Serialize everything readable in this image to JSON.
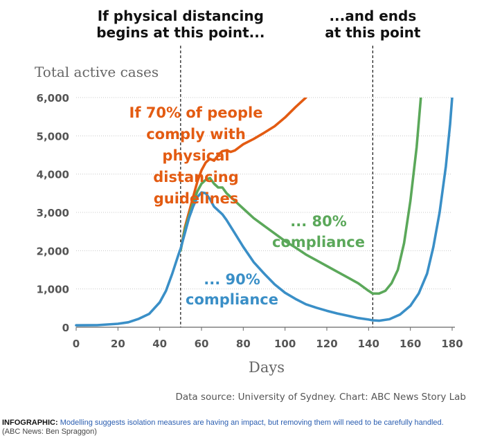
{
  "chart_data": {
    "type": "line",
    "ylabel": "Total active cases",
    "xlabel": "Days",
    "xlim": [
      0,
      180
    ],
    "ylim": [
      0,
      6000
    ],
    "x_ticks": [
      0,
      20,
      40,
      60,
      80,
      100,
      120,
      140,
      160,
      180
    ],
    "y_ticks": [
      0,
      1000,
      2000,
      3000,
      4000,
      5000,
      6000
    ],
    "x_tick_labels": [
      "0",
      "20",
      "40",
      "60",
      "80",
      "100",
      "120",
      "140",
      "160",
      "180"
    ],
    "y_tick_labels": [
      "0",
      "1,000",
      "2,000",
      "3,000",
      "4,000",
      "5,000",
      "6,000"
    ],
    "grid": "horizontal",
    "markers": [
      {
        "x": 50,
        "label_lines": [
          "If physical distancing",
          "begins at this point..."
        ]
      },
      {
        "x": 142,
        "label_lines": [
          "...and ends",
          "at this point"
        ]
      }
    ],
    "series": [
      {
        "label_lines": [
          "If 70% of people",
          "comply with",
          "physical",
          "distancing",
          "guidelines"
        ],
        "color": "#e35b12",
        "points": [
          [
            50,
            2000
          ],
          [
            52,
            2600
          ],
          [
            54,
            3000
          ],
          [
            56,
            3400
          ],
          [
            58,
            3800
          ],
          [
            60,
            4100
          ],
          [
            62,
            4300
          ],
          [
            64,
            4400
          ],
          [
            66,
            4350
          ],
          [
            68,
            4500
          ],
          [
            70,
            4600
          ],
          [
            72,
            4620
          ],
          [
            74,
            4580
          ],
          [
            76,
            4620
          ],
          [
            78,
            4700
          ],
          [
            80,
            4780
          ],
          [
            85,
            4920
          ],
          [
            90,
            5080
          ],
          [
            95,
            5250
          ],
          [
            100,
            5480
          ],
          [
            105,
            5750
          ],
          [
            110,
            6000
          ]
        ]
      },
      {
        "label_lines": [
          "... 80%",
          "compliance"
        ],
        "color": "#5ba85a",
        "points": [
          [
            50,
            2000
          ],
          [
            52,
            2550
          ],
          [
            54,
            2900
          ],
          [
            56,
            3250
          ],
          [
            58,
            3550
          ],
          [
            60,
            3750
          ],
          [
            62,
            3850
          ],
          [
            64,
            3900
          ],
          [
            66,
            3750
          ],
          [
            68,
            3650
          ],
          [
            70,
            3650
          ],
          [
            72,
            3500
          ],
          [
            76,
            3300
          ],
          [
            80,
            3100
          ],
          [
            85,
            2850
          ],
          [
            90,
            2650
          ],
          [
            95,
            2450
          ],
          [
            100,
            2250
          ],
          [
            105,
            2080
          ],
          [
            110,
            1900
          ],
          [
            115,
            1750
          ],
          [
            120,
            1600
          ],
          [
            125,
            1450
          ],
          [
            130,
            1300
          ],
          [
            135,
            1150
          ],
          [
            140,
            950
          ],
          [
            142,
            880
          ],
          [
            145,
            880
          ],
          [
            148,
            950
          ],
          [
            151,
            1150
          ],
          [
            154,
            1500
          ],
          [
            157,
            2200
          ],
          [
            160,
            3300
          ],
          [
            163,
            4700
          ],
          [
            165,
            6000
          ]
        ]
      },
      {
        "label_lines": [
          "... 90%",
          "compliance"
        ],
        "color": "#3a8fc7",
        "points": [
          [
            0,
            50
          ],
          [
            10,
            55
          ],
          [
            20,
            90
          ],
          [
            25,
            130
          ],
          [
            30,
            220
          ],
          [
            35,
            350
          ],
          [
            40,
            650
          ],
          [
            43,
            950
          ],
          [
            46,
            1400
          ],
          [
            49,
            1900
          ],
          [
            50,
            2050
          ],
          [
            52,
            2450
          ],
          [
            54,
            2850
          ],
          [
            56,
            3150
          ],
          [
            58,
            3400
          ],
          [
            60,
            3520
          ],
          [
            62,
            3500
          ],
          [
            64,
            3350
          ],
          [
            66,
            3150
          ],
          [
            68,
            3050
          ],
          [
            70,
            2950
          ],
          [
            72,
            2800
          ],
          [
            76,
            2450
          ],
          [
            80,
            2100
          ],
          [
            85,
            1700
          ],
          [
            90,
            1400
          ],
          [
            95,
            1120
          ],
          [
            100,
            900
          ],
          [
            105,
            740
          ],
          [
            110,
            600
          ],
          [
            115,
            510
          ],
          [
            120,
            430
          ],
          [
            125,
            360
          ],
          [
            130,
            300
          ],
          [
            135,
            240
          ],
          [
            140,
            200
          ],
          [
            142,
            180
          ],
          [
            145,
            170
          ],
          [
            150,
            210
          ],
          [
            155,
            330
          ],
          [
            160,
            560
          ],
          [
            164,
            880
          ],
          [
            168,
            1400
          ],
          [
            171,
            2100
          ],
          [
            174,
            3000
          ],
          [
            177,
            4200
          ],
          [
            179,
            5300
          ],
          [
            180,
            6000
          ]
        ]
      }
    ],
    "annotations_source": "Data source: University of Sydney. Chart: ABC News Story Lab"
  },
  "caption": {
    "label": "INFOGRAPHIC:",
    "text": "Modelling suggests isolation measures are having an impact, but removing them will need to be carefully handled.",
    "credit": "(ABC News: Ben Spraggon)"
  }
}
